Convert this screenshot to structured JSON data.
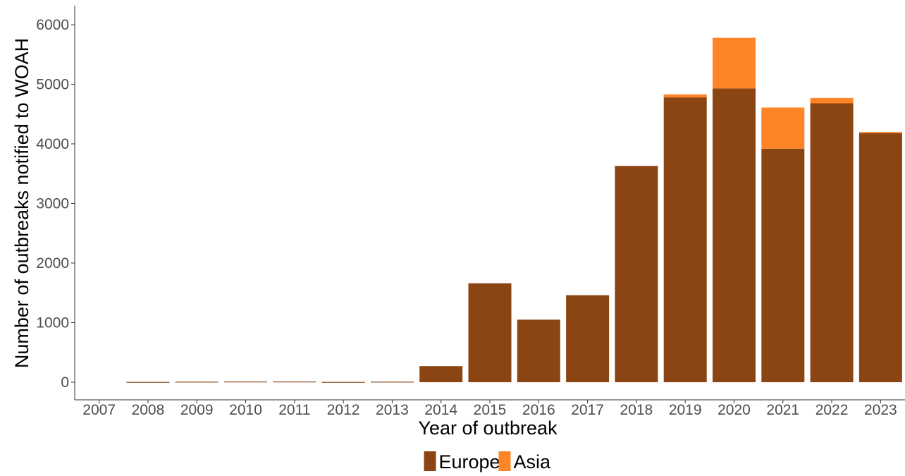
{
  "chart_data": {
    "type": "bar",
    "stacked": true,
    "title": "",
    "xlabel": "Year of outbreak",
    "ylabel": "Number of outbreaks notified to WOAH",
    "ylim": [
      -300,
      6300
    ],
    "yticks": [
      0,
      1000,
      2000,
      3000,
      4000,
      5000,
      6000
    ],
    "grid": false,
    "legend_position": "bottom",
    "categories": [
      "2007",
      "2008",
      "2009",
      "2010",
      "2011",
      "2012",
      "2013",
      "2014",
      "2015",
      "2016",
      "2017",
      "2018",
      "2019",
      "2020",
      "2021",
      "2022",
      "2023"
    ],
    "series": [
      {
        "name": "Europe",
        "color": "#8B4513",
        "values": [
          0,
          5,
          10,
          12,
          12,
          5,
          10,
          270,
          1660,
          1050,
          1460,
          3630,
          4780,
          4930,
          3920,
          4680,
          4180
        ]
      },
      {
        "name": "Asia",
        "color": "#FF8427",
        "values": [
          0,
          0,
          0,
          0,
          0,
          0,
          0,
          0,
          0,
          0,
          0,
          0,
          50,
          850,
          690,
          90,
          20
        ]
      }
    ]
  }
}
